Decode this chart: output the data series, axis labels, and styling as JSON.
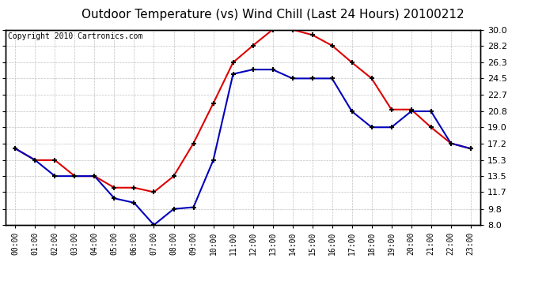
{
  "title": "Outdoor Temperature (vs) Wind Chill (Last 24 Hours) 20100212",
  "copyright": "Copyright 2010 Cartronics.com",
  "hours": [
    "00:00",
    "01:00",
    "02:00",
    "03:00",
    "04:00",
    "05:00",
    "06:00",
    "07:00",
    "08:00",
    "09:00",
    "10:00",
    "11:00",
    "12:00",
    "13:00",
    "14:00",
    "15:00",
    "16:00",
    "17:00",
    "18:00",
    "19:00",
    "20:00",
    "21:00",
    "22:00",
    "23:00"
  ],
  "red_temp": [
    16.6,
    15.3,
    15.3,
    13.5,
    13.5,
    12.2,
    12.2,
    11.7,
    13.5,
    17.2,
    21.7,
    26.3,
    28.2,
    30.0,
    30.0,
    29.4,
    28.2,
    26.3,
    24.5,
    21.0,
    21.0,
    19.0,
    17.2,
    16.6
  ],
  "blue_wc": [
    16.6,
    15.3,
    13.5,
    13.5,
    13.5,
    11.0,
    10.5,
    8.0,
    9.8,
    10.0,
    15.3,
    25.0,
    25.5,
    25.5,
    24.5,
    24.5,
    24.5,
    20.8,
    19.0,
    19.0,
    20.8,
    20.8,
    17.2,
    16.6
  ],
  "ylim": [
    8.0,
    30.0
  ],
  "yticks": [
    8.0,
    9.8,
    11.7,
    13.5,
    15.3,
    17.2,
    19.0,
    20.8,
    22.7,
    24.5,
    26.3,
    28.2,
    30.0
  ],
  "red_color": "#dd0000",
  "blue_color": "#0000bb",
  "bg_color": "#ffffff",
  "grid_color": "#bbbbbb",
  "title_fontsize": 11,
  "copyright_fontsize": 7
}
